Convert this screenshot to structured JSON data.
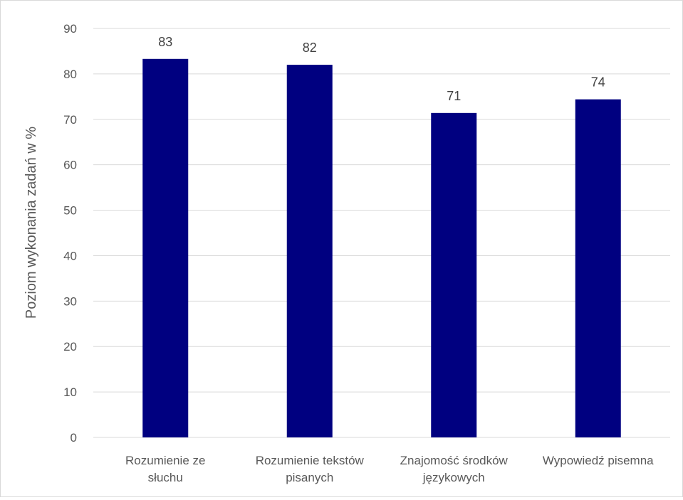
{
  "chart_data": {
    "type": "bar",
    "title": "",
    "xlabel": "",
    "ylabel": "Poziom wykonania zadań w %",
    "categories": [
      [
        "Rozumienie ze",
        "słuchu"
      ],
      [
        "Rozumienie tekstów",
        "pisanych"
      ],
      [
        "Znajomość środków",
        "językowych"
      ],
      [
        "Wypowiedź pisemna"
      ]
    ],
    "values": [
      83.3,
      82.0,
      71.4,
      74.4
    ],
    "data_labels": [
      "83",
      "82",
      "71",
      "74"
    ],
    "ylim": [
      0,
      90
    ],
    "yticks": [
      0,
      10,
      20,
      30,
      40,
      50,
      60,
      70,
      80,
      90
    ],
    "grid": true,
    "legend": "none",
    "bar_color": "#000080"
  }
}
